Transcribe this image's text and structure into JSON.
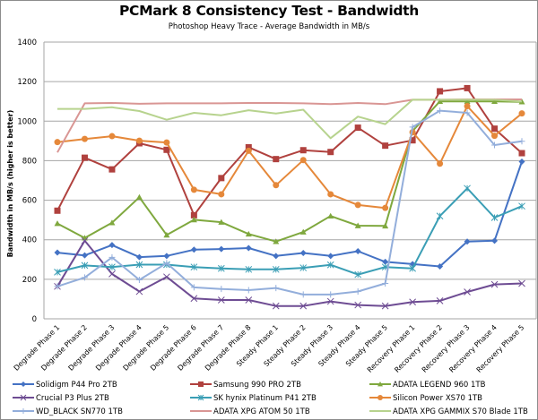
{
  "chart_data": {
    "type": "line",
    "title": "PCMark 8 Consistency Test - Bandwidth",
    "subtitle": "Photoshop Heavy Trace - Average Bandwidth in MB/s",
    "xlabel": "",
    "ylabel": "Bandwidth in MB/s (higher is better)",
    "ylim": [
      0,
      1400
    ],
    "yticks": [
      0,
      200,
      400,
      600,
      800,
      1000,
      1200,
      1400
    ],
    "grid": true,
    "legend_position": "bottom",
    "categories": [
      "Degrade Phase 1",
      "Degrade Phase 2",
      "Degrade Phase 3",
      "Degrade Phase 4",
      "Degrade Phase 5",
      "Degrade Phase 6",
      "Degrade Phase 7",
      "Degrade Phase 8",
      "Steady Phase 1",
      "Steady Phase 2",
      "Steady Phase 3",
      "Steady Phase 4",
      "Steady Phase 5",
      "Recovery Phase 1",
      "Recovery Phase 2",
      "Recovery Phase 3",
      "Recovery Phase 4",
      "Recovery Phase 5"
    ],
    "series": [
      {
        "name": "Solidigm P44 Pro 2TB",
        "color": "#4472C4",
        "marker": "diamond",
        "values": [
          335,
          321,
          373,
          312,
          318,
          350,
          353,
          358,
          318,
          333,
          318,
          342,
          288,
          277,
          265,
          391,
          395,
          795
        ]
      },
      {
        "name": "Samsung 990 PRO 2TB",
        "color": "#B0413E",
        "marker": "square",
        "values": [
          547,
          815,
          756,
          888,
          855,
          524,
          712,
          868,
          808,
          853,
          844,
          967,
          876,
          903,
          1151,
          1167,
          962,
          838
        ]
      },
      {
        "name": "ADATA LEGEND 960 1TB",
        "color": "#7FA83E",
        "marker": "triangle",
        "values": [
          482,
          409,
          486,
          615,
          424,
          501,
          489,
          429,
          391,
          439,
          520,
          471,
          470,
          950,
          1100,
          1100,
          1100,
          1098
        ]
      },
      {
        "name": "Crucial P3 Plus 2TB",
        "color": "#6E4C93",
        "marker": "x",
        "values": [
          164,
          395,
          227,
          138,
          212,
          103,
          95,
          95,
          65,
          65,
          88,
          70,
          65,
          85,
          91,
          136,
          174,
          179
        ]
      },
      {
        "name": "SK hynix Platinum P41 2TB",
        "color": "#3A9EB5",
        "marker": "star",
        "values": [
          236,
          270,
          262,
          274,
          274,
          262,
          255,
          250,
          250,
          258,
          273,
          224,
          262,
          255,
          520,
          660,
          512,
          570
        ]
      },
      {
        "name": "Silicon Power XS70 1TB",
        "color": "#E5883A",
        "marker": "circle",
        "values": [
          894,
          910,
          924,
          901,
          892,
          653,
          630,
          850,
          676,
          803,
          630,
          576,
          561,
          944,
          785,
          1076,
          926,
          1039
        ]
      },
      {
        "name": "WD_BLACK SN770 1TB",
        "color": "#93AEDB",
        "marker": "plus",
        "values": [
          164,
          209,
          311,
          197,
          282,
          159,
          151,
          145,
          156,
          123,
          123,
          138,
          179,
          970,
          1053,
          1042,
          879,
          898
        ]
      },
      {
        "name": "ADATA XPG ATOM 50 1TB",
        "color": "#D99694",
        "marker": "none",
        "values": [
          842,
          1090,
          1092,
          1088,
          1090,
          1090,
          1090,
          1092,
          1092,
          1090,
          1086,
          1092,
          1086,
          1108,
          1108,
          1110,
          1110,
          1110
        ]
      },
      {
        "name": "ADATA XPG GAMMIX S70 Blade 1TB",
        "color": "#B7D38E",
        "marker": "none",
        "values": [
          1062,
          1062,
          1070,
          1051,
          1007,
          1042,
          1030,
          1055,
          1039,
          1058,
          914,
          1023,
          985,
          1108,
          1108,
          1108,
          1108,
          1099
        ]
      }
    ]
  }
}
